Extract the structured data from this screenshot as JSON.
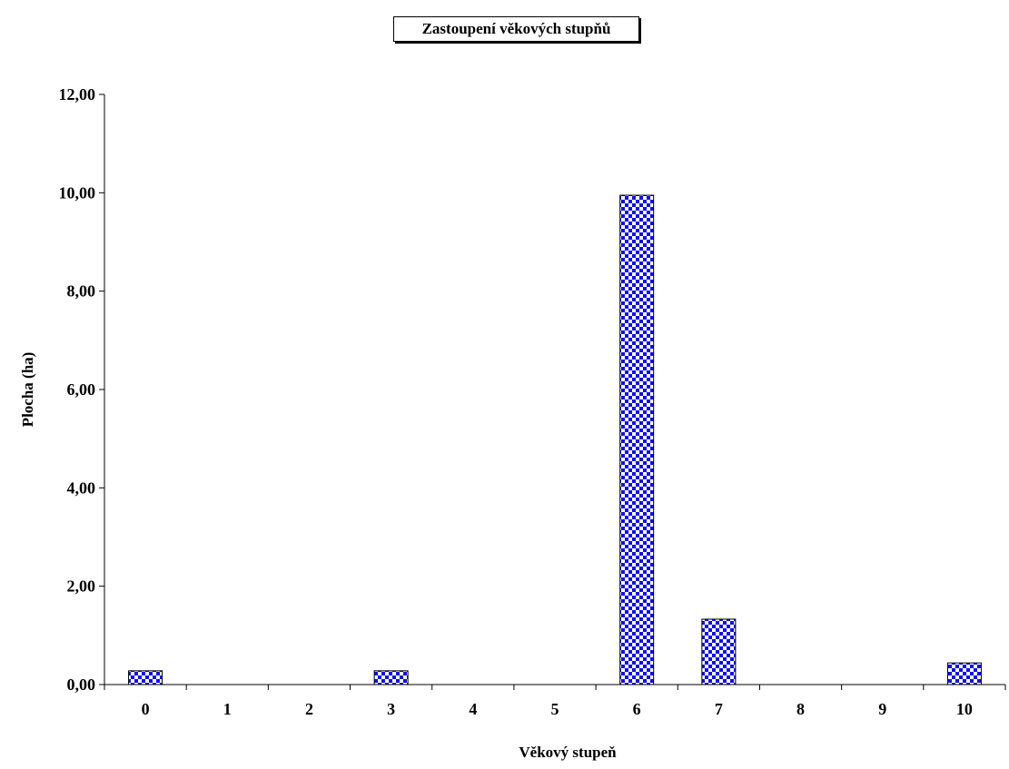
{
  "chart_data": {
    "type": "bar",
    "title": "Zastoupení věkových stupňů",
    "xlabel": "Věkový stupeň",
    "ylabel": "Plocha (ha)",
    "categories": [
      "0",
      "1",
      "2",
      "3",
      "4",
      "5",
      "6",
      "7",
      "8",
      "9",
      "10"
    ],
    "values": [
      0.28,
      0,
      0,
      0.28,
      0,
      0,
      9.95,
      1.33,
      0,
      0,
      0.44
    ],
    "ylim": [
      0,
      12
    ],
    "yticks": [
      "0,00",
      "2,00",
      "4,00",
      "6,00",
      "8,00",
      "10,00",
      "12,00"
    ],
    "grid": false,
    "legend": "none",
    "bar_fill": "#1010e0",
    "bar_pattern_light": "#ffffff"
  }
}
